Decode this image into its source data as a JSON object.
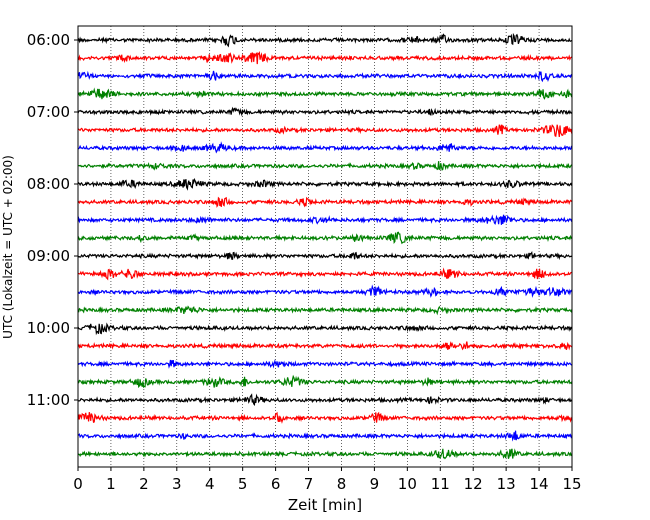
{
  "chart_data": {
    "type": "line",
    "title": "",
    "xlabel": "Zeit  [min]",
    "ylabel": "UTC (Lokalzeit = UTC + 02:00)",
    "xlim": [
      0,
      15
    ],
    "x_ticks": [
      "0",
      "1",
      "2",
      "3",
      "4",
      "5",
      "6",
      "7",
      "8",
      "9",
      "10",
      "11",
      "12",
      "13",
      "14",
      "15"
    ],
    "y_tick_labels": [
      "06:00",
      "07:00",
      "08:00",
      "09:00",
      "10:00",
      "11:00"
    ],
    "grid": "vertical-dotted",
    "trace_colors": [
      "#000000",
      "#ff0000",
      "#0000ff",
      "#008000"
    ],
    "traces": [
      {
        "start": "06:00",
        "color": "#000000"
      },
      {
        "start": "06:15",
        "color": "#ff0000"
      },
      {
        "start": "06:30",
        "color": "#0000ff"
      },
      {
        "start": "06:45",
        "color": "#008000"
      },
      {
        "start": "07:00",
        "color": "#000000"
      },
      {
        "start": "07:15",
        "color": "#ff0000"
      },
      {
        "start": "07:30",
        "color": "#0000ff"
      },
      {
        "start": "07:45",
        "color": "#008000"
      },
      {
        "start": "08:00",
        "color": "#000000"
      },
      {
        "start": "08:15",
        "color": "#ff0000"
      },
      {
        "start": "08:30",
        "color": "#0000ff"
      },
      {
        "start": "08:45",
        "color": "#008000"
      },
      {
        "start": "09:00",
        "color": "#000000"
      },
      {
        "start": "09:15",
        "color": "#ff0000"
      },
      {
        "start": "09:30",
        "color": "#0000ff"
      },
      {
        "start": "09:45",
        "color": "#008000"
      },
      {
        "start": "10:00",
        "color": "#000000"
      },
      {
        "start": "10:15",
        "color": "#ff0000"
      },
      {
        "start": "10:30",
        "color": "#0000ff"
      },
      {
        "start": "10:45",
        "color": "#008000"
      },
      {
        "start": "11:00",
        "color": "#000000"
      },
      {
        "start": "11:15",
        "color": "#ff0000"
      },
      {
        "start": "11:30",
        "color": "#0000ff"
      },
      {
        "start": "11:45",
        "color": "#008000"
      }
    ]
  }
}
